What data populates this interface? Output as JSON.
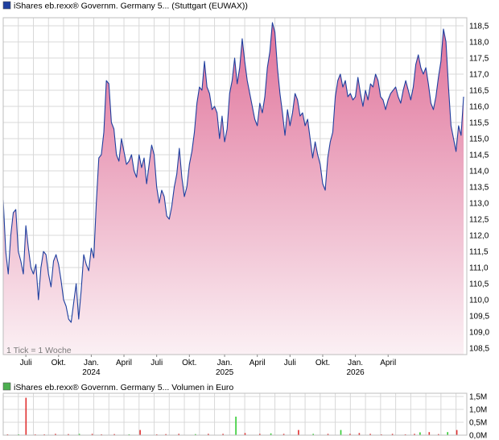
{
  "price_chart": {
    "title": "iShares eb.rexx® Governm. Germany 5... (Stuttgart (EUWAX))",
    "tick_note": "1 Tick = 1 Woche",
    "colors": {
      "line": "#1f3f9f",
      "fill_top": "#e0729a",
      "fill_bottom": "#fbf0f4",
      "legend": "#1f3f9f",
      "grid": "#d8d8d8"
    }
  },
  "volume_chart": {
    "title": "iShares eb.rexx® Governm. Germany 5... Volumen in Euro",
    "legend_color": "#4caf50"
  },
  "chart_data": [
    {
      "type": "area",
      "title": "iShares eb.rexx® Governm. Germany 5... (Stuttgart (EUWAX))",
      "x_tick_labels": [
        {
          "label": "Juli",
          "index": 9
        },
        {
          "label": "Okt.",
          "index": 22
        },
        {
          "label": "Jan.",
          "index": 35,
          "year": "2024"
        },
        {
          "label": "April",
          "index": 48
        },
        {
          "label": "Juli",
          "index": 61
        },
        {
          "label": "Okt.",
          "index": 74
        },
        {
          "label": "Jan.",
          "index": 88,
          "year": "2025"
        },
        {
          "label": "April",
          "index": 101
        },
        {
          "label": "Juli",
          "index": 114
        },
        {
          "label": "Okt.",
          "index": 127
        },
        {
          "label": "Jan.",
          "index": 140,
          "year": "2026"
        },
        {
          "label": "April",
          "index": 153
        }
      ],
      "y_ticks": [
        108.5,
        109.0,
        109.5,
        110.0,
        110.5,
        111.0,
        111.5,
        112.0,
        112.5,
        113.0,
        113.5,
        114.0,
        114.5,
        115.0,
        115.5,
        116.0,
        116.5,
        117.0,
        117.5,
        118.0,
        118.5
      ],
      "y_tick_labels": [
        "108,5",
        "109,0",
        "109,5",
        "110,0",
        "110,5",
        "111,0",
        "111,5",
        "112,0",
        "112,5",
        "113,0",
        "113,5",
        "114,0",
        "114,5",
        "115,0",
        "115,5",
        "116,0",
        "116,5",
        "117,0",
        "117,5",
        "118,0",
        "118,5"
      ],
      "ylim": [
        108.3,
        118.75
      ],
      "grid": true,
      "values": [
        113.1,
        111.5,
        110.8,
        112.0,
        112.7,
        112.8,
        111.5,
        111.2,
        110.8,
        112.3,
        111.6,
        111.0,
        110.8,
        111.1,
        110.0,
        111.0,
        111.5,
        111.4,
        110.8,
        110.4,
        111.2,
        111.4,
        111.1,
        110.6,
        110.0,
        109.8,
        109.4,
        109.3,
        109.9,
        110.5,
        109.4,
        110.3,
        111.4,
        111.1,
        110.9,
        111.6,
        111.3,
        113.0,
        114.4,
        114.5,
        115.2,
        116.8,
        116.7,
        115.5,
        115.3,
        114.5,
        114.3,
        115.0,
        114.6,
        114.2,
        114.3,
        114.5,
        114.0,
        113.8,
        114.5,
        114.1,
        114.4,
        113.6,
        114.2,
        114.8,
        114.5,
        113.5,
        113.0,
        113.4,
        113.2,
        112.6,
        112.5,
        112.9,
        113.5,
        113.9,
        114.7,
        113.8,
        113.2,
        113.5,
        114.2,
        114.6,
        115.2,
        116.1,
        116.6,
        116.5,
        117.4,
        116.6,
        116.4,
        115.9,
        116.0,
        115.8,
        115.0,
        115.7,
        114.9,
        115.3,
        116.4,
        116.8,
        117.5,
        116.7,
        117.2,
        118.1,
        117.4,
        116.8,
        116.4,
        116.0,
        115.6,
        115.4,
        116.1,
        115.8,
        116.3,
        117.2,
        117.7,
        118.6,
        118.3,
        117.2,
        116.4,
        115.8,
        115.1,
        115.9,
        115.4,
        115.8,
        116.4,
        116.2,
        115.7,
        115.8,
        115.4,
        115.6,
        115.0,
        114.4,
        114.9,
        114.5,
        114.2,
        113.6,
        113.4,
        114.4,
        114.9,
        115.2,
        116.3,
        116.8,
        117.0,
        116.6,
        116.8,
        116.3,
        116.4,
        116.2,
        116.3,
        116.9,
        116.4,
        116.0,
        116.5,
        116.2,
        116.7,
        116.6,
        117.0,
        116.8,
        116.3,
        116.2,
        115.9,
        116.2,
        116.4,
        116.5,
        116.6,
        116.3,
        116.1,
        116.5,
        116.8,
        116.5,
        116.2,
        116.6,
        117.3,
        117.6,
        117.2,
        117.0,
        117.2,
        116.7,
        116.1,
        115.9,
        116.3,
        116.9,
        117.4,
        118.4,
        118.0,
        116.6,
        115.4,
        115.0,
        114.6,
        115.4,
        115.1,
        116.3
      ]
    },
    {
      "type": "bar",
      "title": "iShares eb.rexx® Governm. Germany 5... Volumen in Euro",
      "y_tick_labels": [
        "1,5M",
        "1,0M",
        "0,5M",
        "0,0M"
      ],
      "ylim": [
        0,
        1.5
      ],
      "grid": true,
      "bars": [
        {
          "index": 2,
          "value": 0.03,
          "color": "red"
        },
        {
          "index": 8,
          "value": 0.03,
          "color": "green"
        },
        {
          "index": 12,
          "value": 1.45,
          "color": "red"
        },
        {
          "index": 17,
          "value": 0.03,
          "color": "red"
        },
        {
          "index": 22,
          "value": 0.03,
          "color": "red"
        },
        {
          "index": 28,
          "value": 0.05,
          "color": "red"
        },
        {
          "index": 35,
          "value": 0.04,
          "color": "red"
        },
        {
          "index": 41,
          "value": 0.05,
          "color": "green"
        },
        {
          "index": 48,
          "value": 0.05,
          "color": "red"
        },
        {
          "index": 53,
          "value": 0.03,
          "color": "red"
        },
        {
          "index": 60,
          "value": 0.04,
          "color": "red"
        },
        {
          "index": 68,
          "value": 0.03,
          "color": "green"
        },
        {
          "index": 74,
          "value": 0.2,
          "color": "red"
        },
        {
          "index": 83,
          "value": 0.03,
          "color": "red"
        },
        {
          "index": 88,
          "value": 0.04,
          "color": "red"
        },
        {
          "index": 95,
          "value": 0.05,
          "color": "red"
        },
        {
          "index": 104,
          "value": 0.04,
          "color": "green"
        },
        {
          "index": 111,
          "value": 0.05,
          "color": "red"
        },
        {
          "index": 119,
          "value": 0.05,
          "color": "red"
        },
        {
          "index": 126,
          "value": 0.72,
          "color": "green"
        },
        {
          "index": 131,
          "value": 0.08,
          "color": "red"
        },
        {
          "index": 139,
          "value": 0.05,
          "color": "red"
        },
        {
          "index": 145,
          "value": 0.07,
          "color": "green"
        },
        {
          "index": 152,
          "value": 0.05,
          "color": "red"
        },
        {
          "index": 160,
          "value": 0.2,
          "color": "red"
        },
        {
          "index": 168,
          "value": 0.05,
          "color": "green"
        },
        {
          "index": 176,
          "value": 0.05,
          "color": "red"
        },
        {
          "index": 183,
          "value": 0.2,
          "color": "green"
        },
        {
          "index": 188,
          "value": 0.05,
          "color": "red"
        },
        {
          "index": 193,
          "value": 0.08,
          "color": "red"
        },
        {
          "index": 199,
          "value": 0.05,
          "color": "red"
        },
        {
          "index": 205,
          "value": 0.03,
          "color": "red"
        },
        {
          "index": 211,
          "value": 0.05,
          "color": "red"
        },
        {
          "index": 218,
          "value": 0.03,
          "color": "red"
        },
        {
          "index": 223,
          "value": 0.05,
          "color": "red"
        },
        {
          "index": 226,
          "value": 0.11,
          "color": "green"
        },
        {
          "index": 231,
          "value": 0.12,
          "color": "red"
        },
        {
          "index": 236,
          "value": 0.04,
          "color": "red"
        },
        {
          "index": 241,
          "value": 0.12,
          "color": "green"
        },
        {
          "index": 246,
          "value": 0.2,
          "color": "red"
        }
      ]
    }
  ]
}
